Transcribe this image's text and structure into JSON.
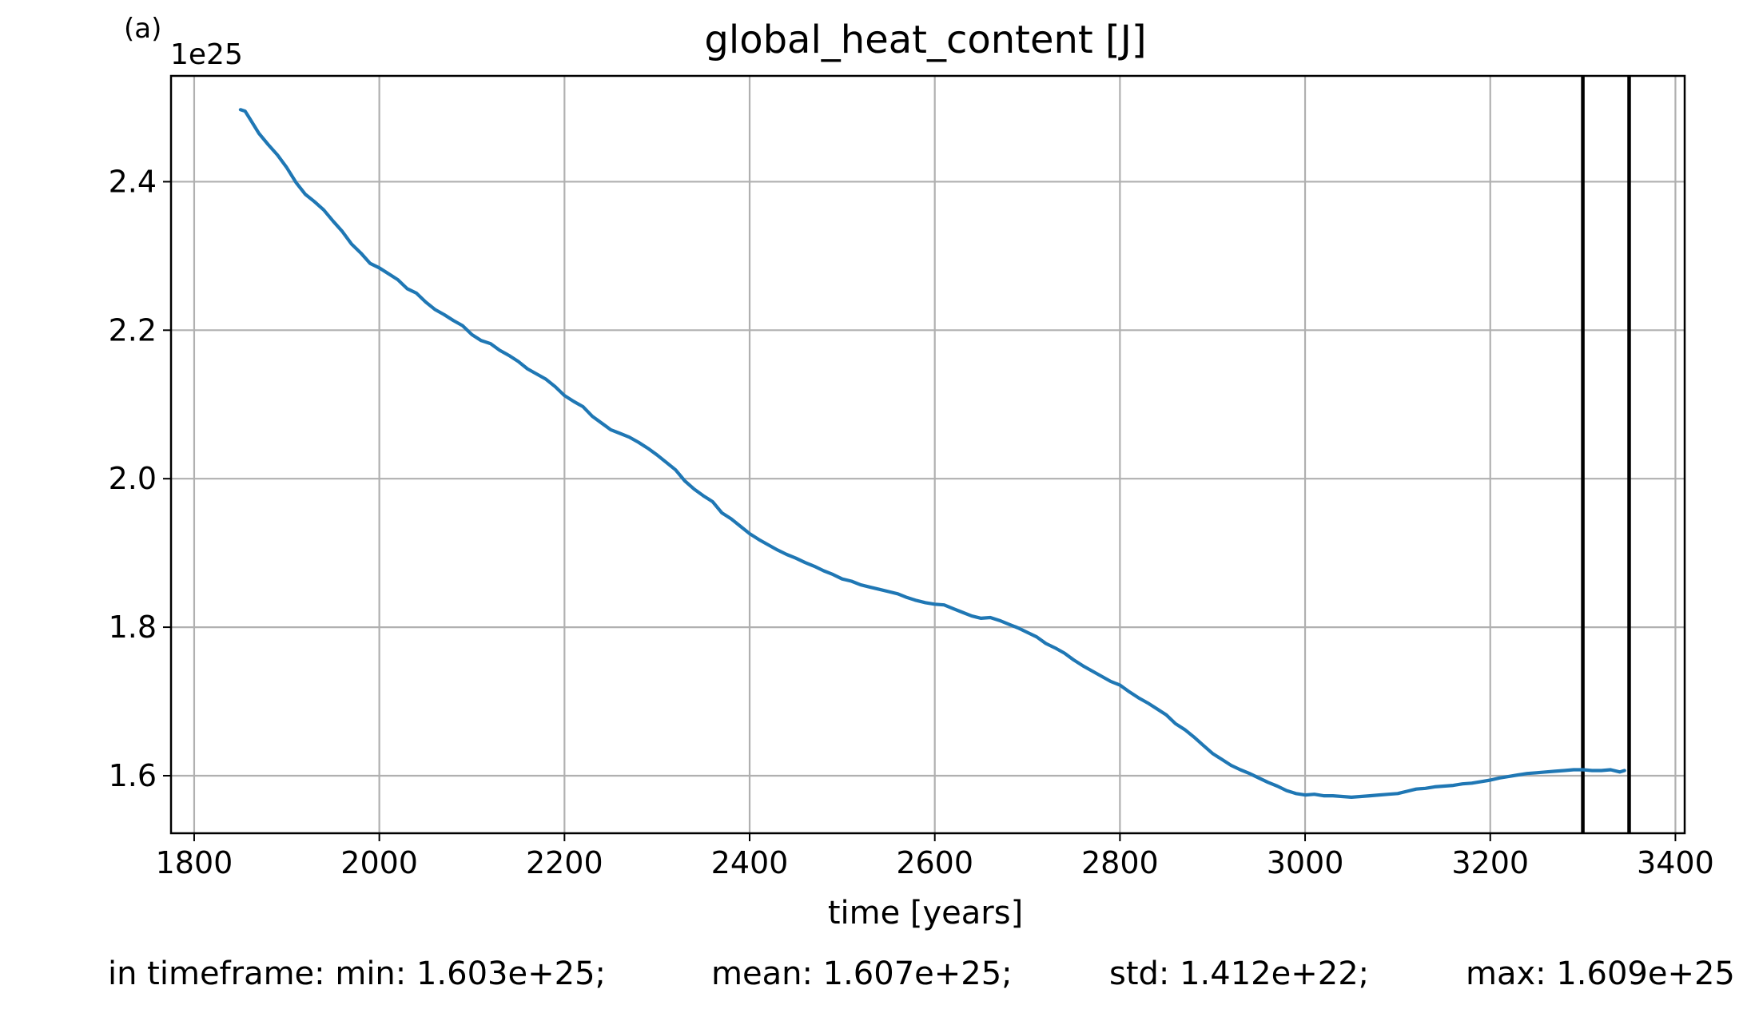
{
  "panel_label": "(a)",
  "chart_data": {
    "type": "line",
    "title": "global_heat_content [J]",
    "xlabel": "time [years]",
    "ylabel": "",
    "y_offset_label": "1e25",
    "y_scale": 1e+25,
    "xlim": [
      1775,
      3410
    ],
    "ylim": [
      1.5225,
      2.5425
    ],
    "x_ticks": [
      1800,
      2000,
      2200,
      2400,
      2600,
      2800,
      3000,
      3200,
      3400
    ],
    "x_tick_labels": [
      "1800",
      "2000",
      "2200",
      "2400",
      "2600",
      "2800",
      "3000",
      "3200",
      "3400"
    ],
    "y_ticks": [
      1.6,
      1.8,
      2.0,
      2.2,
      2.4
    ],
    "y_tick_labels": [
      "1.6",
      "1.8",
      "2.0",
      "2.2",
      "2.4"
    ],
    "grid": true,
    "line_color": "#1f77b4",
    "vertical_lines": [
      3300,
      3350
    ],
    "vertical_line_color": "#000000",
    "series": [
      {
        "x": [
          1850,
          1855,
          1860,
          1870,
          1880,
          1890,
          1900,
          1910,
          1920,
          1930,
          1940,
          1950,
          1960,
          1970,
          1980,
          1990,
          2000,
          2010,
          2020,
          2030,
          2040,
          2050,
          2060,
          2070,
          2080,
          2090,
          2100,
          2110,
          2120,
          2130,
          2140,
          2150,
          2160,
          2170,
          2180,
          2190,
          2200,
          2210,
          2220,
          2230,
          2240,
          2250,
          2260,
          2270,
          2280,
          2290,
          2300,
          2310,
          2320,
          2330,
          2340,
          2350,
          2360,
          2370,
          2380,
          2390,
          2400,
          2410,
          2420,
          2430,
          2440,
          2450,
          2460,
          2470,
          2480,
          2490,
          2500,
          2510,
          2520,
          2530,
          2540,
          2550,
          2560,
          2570,
          2580,
          2590,
          2600,
          2610,
          2620,
          2630,
          2640,
          2650,
          2660,
          2670,
          2680,
          2690,
          2700,
          2710,
          2720,
          2730,
          2740,
          2750,
          2760,
          2770,
          2780,
          2790,
          2800,
          2810,
          2820,
          2830,
          2840,
          2850,
          2860,
          2870,
          2880,
          2890,
          2900,
          2910,
          2920,
          2930,
          2940,
          2950,
          2960,
          2970,
          2980,
          2990,
          3000,
          3010,
          3020,
          3030,
          3040,
          3050,
          3060,
          3070,
          3080,
          3090,
          3100,
          3110,
          3120,
          3130,
          3140,
          3150,
          3160,
          3170,
          3180,
          3190,
          3200,
          3210,
          3220,
          3230,
          3240,
          3250,
          3260,
          3270,
          3280,
          3290,
          3300,
          3310,
          3320,
          3330,
          3340,
          3345
        ],
        "values": [
          2.497,
          2.495,
          2.485,
          2.465,
          2.45,
          2.436,
          2.419,
          2.399,
          2.383,
          2.373,
          2.362,
          2.347,
          2.333,
          2.316,
          2.304,
          2.29,
          2.284,
          2.276,
          2.268,
          2.256,
          2.25,
          2.238,
          2.228,
          2.221,
          2.213,
          2.206,
          2.194,
          2.186,
          2.182,
          2.173,
          2.166,
          2.158,
          2.148,
          2.141,
          2.134,
          2.124,
          2.112,
          2.104,
          2.097,
          2.084,
          2.075,
          2.066,
          2.061,
          2.056,
          2.049,
          2.041,
          2.032,
          2.022,
          2.012,
          1.997,
          1.986,
          1.977,
          1.969,
          1.954,
          1.946,
          1.936,
          1.926,
          1.918,
          1.911,
          1.904,
          1.898,
          1.893,
          1.887,
          1.882,
          1.876,
          1.871,
          1.865,
          1.862,
          1.857,
          1.854,
          1.851,
          1.848,
          1.845,
          1.84,
          1.836,
          1.833,
          1.831,
          1.83,
          1.825,
          1.82,
          1.815,
          1.812,
          1.813,
          1.809,
          1.804,
          1.799,
          1.793,
          1.787,
          1.778,
          1.772,
          1.765,
          1.756,
          1.748,
          1.741,
          1.734,
          1.727,
          1.722,
          1.713,
          1.705,
          1.698,
          1.69,
          1.682,
          1.67,
          1.662,
          1.652,
          1.641,
          1.63,
          1.622,
          1.614,
          1.608,
          1.603,
          1.597,
          1.591,
          1.586,
          1.58,
          1.576,
          1.574,
          1.575,
          1.573,
          1.573,
          1.572,
          1.571,
          1.572,
          1.573,
          1.574,
          1.575,
          1.576,
          1.579,
          1.582,
          1.583,
          1.585,
          1.586,
          1.587,
          1.589,
          1.59,
          1.592,
          1.594,
          1.597,
          1.599,
          1.601,
          1.603,
          1.604,
          1.605,
          1.606,
          1.607,
          1.608,
          1.608,
          1.607,
          1.607,
          1.608,
          1.605,
          1.607
        ]
      }
    ]
  },
  "stats": {
    "label": "in timeframe: min: 1.603e+25;",
    "mean": "mean: 1.607e+25;",
    "std": "std: 1.412e+22;",
    "max": "max: 1.609e+25"
  }
}
